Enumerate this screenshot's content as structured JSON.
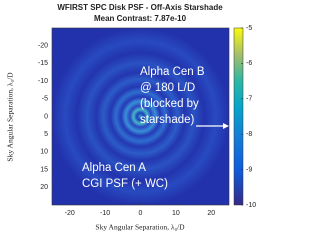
{
  "chart_data": {
    "type": "image",
    "title": "WFIRST SPC Disk PSF - Off-Axis Starshade",
    "subtitle": "Mean Contrast: 7.87e-10",
    "x_label": "Sky Angular Separation, λ₀/D",
    "y_label": "Sky Angular Separation, λ₀/D",
    "xlim": [
      -25,
      25
    ],
    "xticks": [
      -20,
      -10,
      0,
      10,
      20
    ],
    "ylim": [
      25,
      -25
    ],
    "yticks": [
      -20,
      -15,
      -10,
      -5,
      0,
      5,
      10,
      15,
      20
    ],
    "colorbar_lim": [
      -10,
      -5
    ],
    "colorbar_ticks": [
      -5,
      -6,
      -7,
      -8,
      -9,
      -10
    ],
    "annotations": [
      "Alpha Cen B",
      "@ 180 L/D",
      "(blocked by",
      "starshade)",
      "Alpha Cen A",
      "CGI PSF (+ WC)"
    ]
  }
}
